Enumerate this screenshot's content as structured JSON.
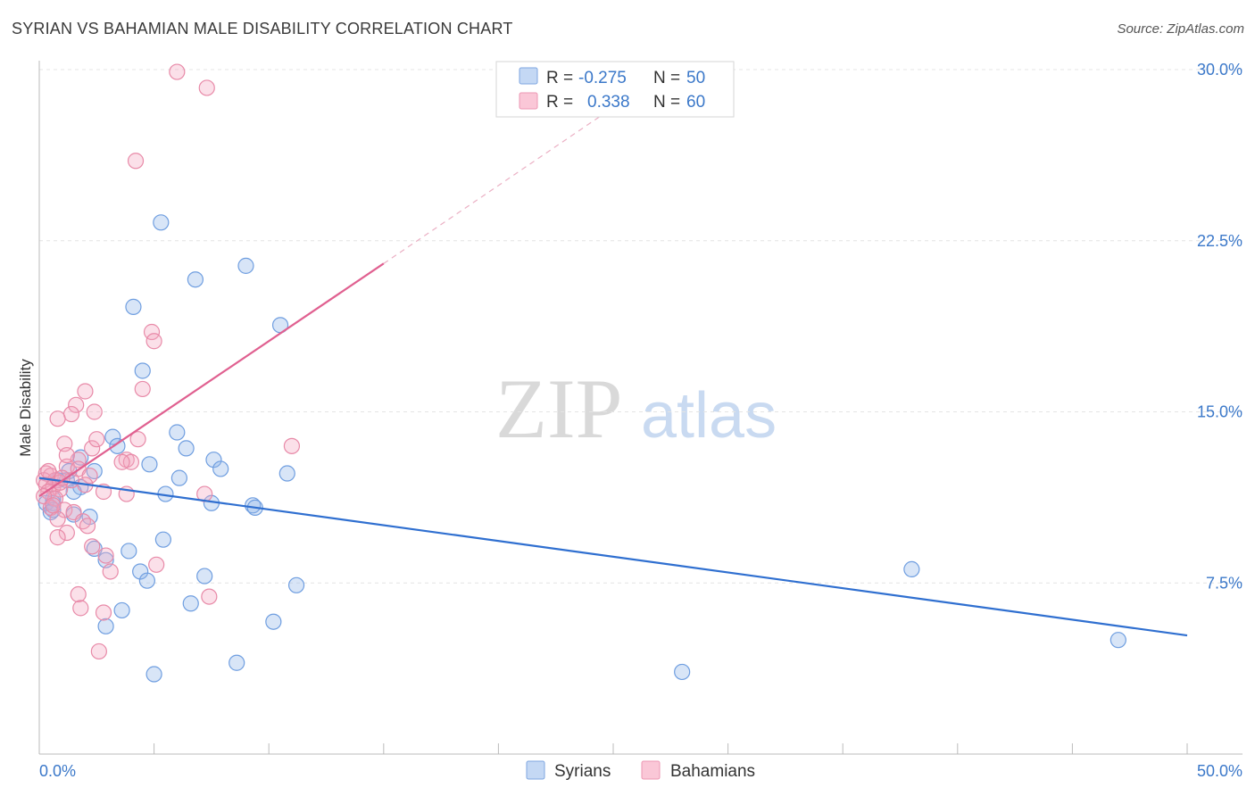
{
  "title": "SYRIAN VS BAHAMIAN MALE DISABILITY CORRELATION CHART",
  "source": "Source: ZipAtlas.com",
  "watermark": {
    "zip": "ZIP",
    "atlas": "atlas"
  },
  "legend": {
    "rows": [
      {
        "r_label": "R =",
        "r_value": "-0.275",
        "n_label": "N =",
        "n_value": "50",
        "color": "#8fb4e8"
      },
      {
        "r_label": "R =",
        "r_value": "0.338",
        "n_label": "N =",
        "n_value": "60",
        "color": "#f4a7bf"
      }
    ]
  },
  "chart_data": {
    "type": "scatter",
    "title": "SYRIAN VS BAHAMIAN MALE DISABILITY CORRELATION CHART",
    "xlabel": "",
    "ylabel": "Male Disability",
    "xlim": [
      0,
      50
    ],
    "ylim": [
      0,
      30
    ],
    "x_tick_labels": [
      "0.0%",
      "50.0%"
    ],
    "y_ticks": [
      {
        "value": 7.5,
        "label": "7.5%"
      },
      {
        "value": 15.0,
        "label": "15.0%"
      },
      {
        "value": 22.5,
        "label": "22.5%"
      },
      {
        "value": 30.0,
        "label": "30.0%"
      }
    ],
    "grid": true,
    "legend_position": "bottom",
    "series": [
      {
        "name": "Syrians",
        "color": "#6f9ee0",
        "fill": "rgba(143,180,232,0.35)",
        "trend": {
          "x0": 0,
          "y0": 12.1,
          "x1": 50,
          "y1": 5.2,
          "color": "#2f6fd0"
        },
        "points": [
          [
            5.3,
            23.3
          ],
          [
            9.0,
            21.4
          ],
          [
            6.8,
            20.8
          ],
          [
            4.1,
            19.6
          ],
          [
            10.5,
            18.8
          ],
          [
            4.5,
            16.8
          ],
          [
            6.0,
            14.1
          ],
          [
            3.2,
            13.9
          ],
          [
            3.4,
            13.5
          ],
          [
            6.4,
            13.4
          ],
          [
            1.8,
            13.0
          ],
          [
            4.8,
            12.7
          ],
          [
            7.6,
            12.9
          ],
          [
            7.9,
            12.5
          ],
          [
            2.4,
            12.4
          ],
          [
            1.3,
            12.4
          ],
          [
            10.8,
            12.3
          ],
          [
            6.1,
            12.1
          ],
          [
            1.2,
            12.0
          ],
          [
            0.8,
            12.0
          ],
          [
            1.8,
            11.7
          ],
          [
            1.5,
            11.5
          ],
          [
            5.5,
            11.4
          ],
          [
            0.6,
            11.2
          ],
          [
            0.3,
            11.0
          ],
          [
            0.6,
            11.0
          ],
          [
            7.5,
            11.0
          ],
          [
            9.3,
            10.9
          ],
          [
            9.4,
            10.8
          ],
          [
            0.6,
            10.7
          ],
          [
            1.5,
            10.5
          ],
          [
            2.2,
            10.4
          ],
          [
            5.4,
            9.4
          ],
          [
            3.9,
            8.9
          ],
          [
            2.4,
            9.0
          ],
          [
            2.9,
            8.5
          ],
          [
            4.4,
            8.0
          ],
          [
            7.2,
            7.8
          ],
          [
            4.7,
            7.6
          ],
          [
            11.2,
            7.4
          ],
          [
            6.6,
            6.6
          ],
          [
            3.6,
            6.3
          ],
          [
            10.2,
            5.8
          ],
          [
            2.9,
            5.6
          ],
          [
            8.6,
            4.0
          ],
          [
            5.0,
            3.5
          ],
          [
            28.0,
            3.6
          ],
          [
            38.0,
            8.1
          ],
          [
            47.0,
            5.0
          ],
          [
            0.5,
            10.6
          ]
        ]
      },
      {
        "name": "Bahamians",
        "color": "#e88aa8",
        "fill": "rgba(244,167,191,0.35)",
        "trend": {
          "x0": 0,
          "y0": 11.3,
          "x1": 15,
          "y1": 21.5,
          "x_dash_end": 24.5,
          "y_dash_end": 28.0,
          "color": "#e06090"
        },
        "points": [
          [
            6.0,
            29.9
          ],
          [
            7.3,
            29.2
          ],
          [
            4.2,
            26.0
          ],
          [
            4.9,
            18.5
          ],
          [
            5.0,
            18.1
          ],
          [
            4.5,
            16.0
          ],
          [
            2.0,
            15.9
          ],
          [
            1.6,
            15.3
          ],
          [
            2.4,
            15.0
          ],
          [
            1.4,
            14.9
          ],
          [
            0.8,
            14.7
          ],
          [
            4.3,
            13.8
          ],
          [
            1.1,
            13.6
          ],
          [
            11.0,
            13.5
          ],
          [
            2.3,
            13.4
          ],
          [
            3.8,
            12.9
          ],
          [
            4.0,
            12.8
          ],
          [
            1.7,
            12.9
          ],
          [
            1.2,
            12.6
          ],
          [
            1.7,
            12.5
          ],
          [
            0.3,
            12.3
          ],
          [
            0.5,
            12.2
          ],
          [
            2.2,
            12.2
          ],
          [
            0.2,
            12.0
          ],
          [
            0.7,
            12.0
          ],
          [
            1.4,
            12.0
          ],
          [
            0.3,
            11.8
          ],
          [
            0.6,
            11.7
          ],
          [
            0.9,
            11.6
          ],
          [
            0.4,
            11.5
          ],
          [
            2.8,
            11.5
          ],
          [
            3.8,
            11.4
          ],
          [
            7.2,
            11.4
          ],
          [
            0.7,
            11.2
          ],
          [
            0.5,
            10.8
          ],
          [
            1.1,
            10.7
          ],
          [
            1.5,
            10.6
          ],
          [
            0.8,
            10.3
          ],
          [
            1.9,
            10.2
          ],
          [
            2.1,
            10.0
          ],
          [
            1.2,
            9.7
          ],
          [
            0.8,
            9.5
          ],
          [
            2.3,
            9.1
          ],
          [
            2.9,
            8.7
          ],
          [
            5.1,
            8.3
          ],
          [
            3.1,
            8.0
          ],
          [
            7.4,
            6.9
          ],
          [
            1.7,
            7.0
          ],
          [
            1.8,
            6.4
          ],
          [
            2.8,
            6.2
          ],
          [
            2.6,
            4.5
          ],
          [
            0.4,
            12.4
          ],
          [
            0.9,
            11.9
          ],
          [
            2.5,
            13.8
          ],
          [
            1.2,
            13.1
          ],
          [
            0.2,
            11.3
          ],
          [
            0.6,
            10.9
          ],
          [
            3.6,
            12.8
          ],
          [
            2.0,
            11.8
          ],
          [
            1.0,
            12.1
          ]
        ]
      }
    ]
  }
}
